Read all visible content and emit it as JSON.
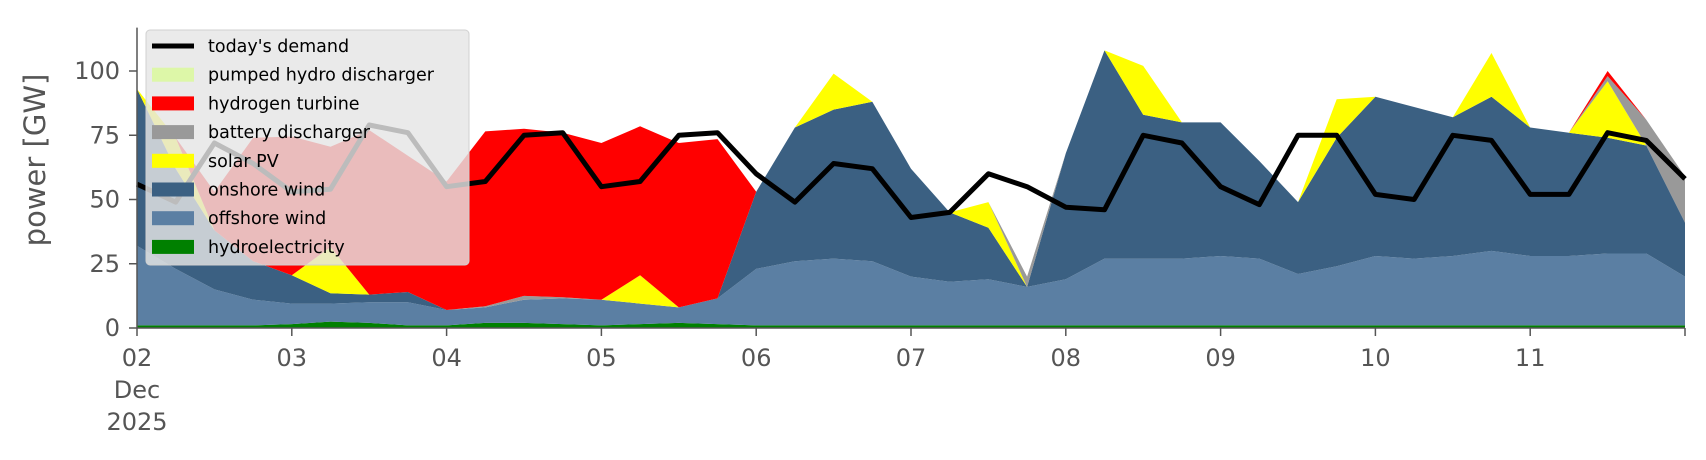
{
  "chart_data": {
    "type": "area",
    "ylabel": "power [GW]",
    "ylim": [
      0,
      120
    ],
    "yticks": [
      0,
      25,
      50,
      75,
      100
    ],
    "x_start": "2025-12-02T00:00",
    "x_end": "2025-12-11T24:00",
    "x_step_hours": 6,
    "xtick_labels": [
      "02",
      "03",
      "04",
      "05",
      "06",
      "07",
      "08",
      "09",
      "10",
      "11"
    ],
    "xtick_sublabel": [
      "Dec",
      "2025"
    ],
    "grid": false,
    "legend_position": "top-left",
    "legend_entries": [
      "today's demand",
      "pumped hydro discharger",
      "hydrogen turbine",
      "battery discharger",
      "solar PV",
      "onshore wind",
      "offshore wind",
      "hydroelectricity"
    ],
    "stack_series": [
      {
        "name": "hydroelectricity",
        "color": "#008000",
        "values": [
          1,
          1,
          1,
          1,
          1.5,
          2.5,
          2,
          1,
          1,
          2,
          2,
          1.5,
          1,
          1.5,
          2,
          1.5,
          1,
          1,
          1,
          1,
          1,
          1,
          1,
          1,
          1,
          1,
          1,
          1,
          1,
          1,
          1,
          1,
          1,
          1,
          1,
          1,
          1,
          1,
          1,
          1,
          1
        ]
      },
      {
        "name": "offshore wind",
        "color": "#5b7fa3",
        "values": [
          31,
          22,
          14,
          10,
          8,
          7,
          8,
          9,
          6,
          6,
          9,
          10,
          10,
          8,
          6,
          10,
          22,
          25,
          26,
          25,
          19,
          17,
          18,
          15,
          18,
          26,
          26,
          26,
          27,
          26,
          20,
          23,
          27,
          26,
          27,
          29,
          27,
          27,
          28,
          28,
          19
        ]
      },
      {
        "name": "onshore wind",
        "color": "#3b6082",
        "values": [
          61,
          39,
          23,
          15,
          11,
          4,
          3,
          4,
          0,
          0,
          0,
          0,
          0,
          0,
          0,
          0,
          30,
          52,
          58,
          62,
          42,
          27,
          20,
          0,
          49,
          81,
          56,
          53,
          52,
          38,
          28,
          50,
          62,
          59,
          54,
          60,
          50,
          48,
          45,
          42,
          21
        ]
      },
      {
        "name": "solar PV",
        "color": "#ffff00",
        "values": [
          0,
          12,
          0,
          0,
          0,
          18,
          0,
          0,
          0,
          0,
          0,
          0,
          0,
          11,
          0,
          0,
          0,
          0,
          14,
          0,
          0,
          0,
          10,
          0,
          0,
          0,
          19,
          0,
          0,
          0,
          0,
          15,
          0,
          0,
          0,
          17,
          0,
          0,
          22,
          0,
          0
        ]
      },
      {
        "name": "battery discharger",
        "color": "#999999",
        "values": [
          0,
          0,
          0,
          0,
          0,
          0,
          0,
          0,
          0,
          0.5,
          1.5,
          0.5,
          0,
          0,
          0,
          0,
          0,
          0,
          0,
          0,
          0,
          0,
          0,
          4,
          0,
          0,
          0,
          0,
          0,
          0,
          0,
          0,
          0,
          0,
          0,
          0,
          0,
          0,
          2,
          10,
          18
        ]
      },
      {
        "name": "hydrogen turbine",
        "color": "#ff0000",
        "values": [
          0,
          0,
          15,
          48,
          54,
          39,
          64,
          53,
          50,
          68,
          65,
          64,
          61,
          58,
          64,
          62,
          0,
          0,
          0,
          0,
          0,
          0,
          0,
          0,
          0,
          0,
          0,
          0,
          0,
          0,
          0,
          0,
          0,
          0,
          0,
          0,
          0,
          0,
          2,
          0,
          0
        ]
      },
      {
        "name": "pumped hydro discharger",
        "color": "#ddf7a8",
        "values": [
          0,
          0,
          0,
          0,
          0,
          0,
          0,
          0,
          0,
          0,
          0,
          0,
          0,
          0,
          0,
          0,
          0,
          0,
          0,
          0,
          0,
          0,
          0,
          0,
          0,
          0,
          0,
          0,
          0,
          0,
          0,
          0,
          0,
          0,
          0,
          0,
          0,
          0,
          0,
          0,
          0
        ]
      }
    ],
    "line_series": {
      "name": "today's demand",
      "color": "#000000",
      "values": [
        56,
        49,
        72,
        64,
        53,
        54,
        79,
        76,
        55,
        57,
        75,
        76,
        55,
        57,
        75,
        76,
        60,
        49,
        64,
        62,
        43,
        45,
        60,
        55,
        47,
        46,
        75,
        72,
        55,
        48,
        75,
        75,
        52,
        50,
        75,
        73,
        52,
        52,
        76,
        73,
        58
      ]
    }
  }
}
